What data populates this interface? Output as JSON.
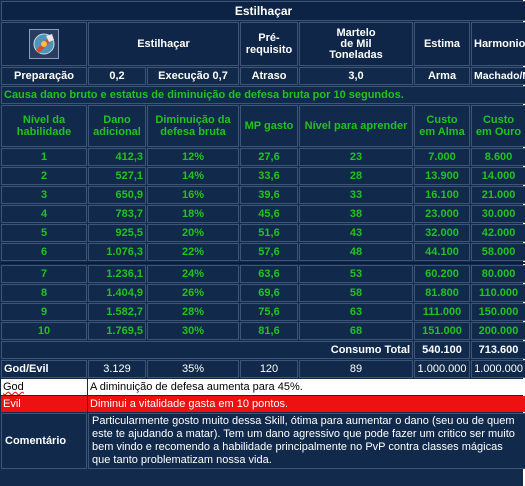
{
  "title": "Estilhaçar",
  "skill_icon": "shatter-hammer-icon",
  "header": {
    "name": "Estilhaçar",
    "prereq_label": "Pré-\nrequisito",
    "prereq_value": "Martelo\nde Mil\nToneladas",
    "stance_label": "Estima",
    "stance_value": "Harmonioso"
  },
  "info": {
    "prep_label": "Preparação",
    "prep_value": "0,2",
    "exec_label": "Execução 0,7",
    "delay_label": "Atraso",
    "delay_value": "3,0",
    "weapon_label": "Arma",
    "weapon_value": "Machado/Martelo"
  },
  "description": "Causa dano bruto e estatus de diminuição de defesa bruta por 10 segundos.",
  "columns": [
    "Nível da habilidade",
    "Dano adicional",
    "Diminuição da defesa bruta",
    "MP gasto",
    "Nível para aprender",
    "Custo em Alma",
    "Custo em Ouro"
  ],
  "rows": [
    {
      "lvl": "1",
      "dmg": "412,3",
      "def": "12%",
      "mp": "27,6",
      "learn": "23",
      "alma": "7.000",
      "ouro": "8.600"
    },
    {
      "lvl": "2",
      "dmg": "527,1",
      "def": "14%",
      "mp": "33,6",
      "learn": "28",
      "alma": "13.900",
      "ouro": "14.000"
    },
    {
      "lvl": "3",
      "dmg": "650,9",
      "def": "16%",
      "mp": "39,6",
      "learn": "33",
      "alma": "16.100",
      "ouro": "21.000"
    },
    {
      "lvl": "4",
      "dmg": "783,7",
      "def": "18%",
      "mp": "45,6",
      "learn": "38",
      "alma": "23.000",
      "ouro": "30.000"
    },
    {
      "lvl": "5",
      "dmg": "925,5",
      "def": "20%",
      "mp": "51,6",
      "learn": "43",
      "alma": "32.000",
      "ouro": "42.000"
    },
    {
      "lvl": "6",
      "dmg": "1.076,3",
      "def": "22%",
      "mp": "57,6",
      "learn": "48",
      "alma": "44.100",
      "ouro": "58.000"
    },
    {
      "lvl": "7",
      "dmg": "1.236,1",
      "def": "24%",
      "mp": "63,6",
      "learn": "53",
      "alma": "60.200",
      "ouro": "80.000"
    },
    {
      "lvl": "8",
      "dmg": "1.404,9",
      "def": "26%",
      "mp": "69,6",
      "learn": "58",
      "alma": "81.800",
      "ouro": "110.000"
    },
    {
      "lvl": "9",
      "dmg": "1.582,7",
      "def": "28%",
      "mp": "75,6",
      "learn": "63",
      "alma": "111.000",
      "ouro": "150.000"
    },
    {
      "lvl": "10",
      "dmg": "1.769,5",
      "def": "30%",
      "mp": "81,6",
      "learn": "68",
      "alma": "151.000",
      "ouro": "200.000"
    }
  ],
  "total": {
    "label": "Consumo Total",
    "alma": "540.100",
    "ouro": "713.600"
  },
  "godevil": {
    "label": "God/Evil",
    "dmg": "3.129",
    "def": "35%",
    "mp": "120",
    "learn": "89",
    "alma": "1.000.000",
    "ouro": "1.000.000"
  },
  "god": {
    "label": "God",
    "text": "A diminuição de defesa aumenta para 45%."
  },
  "evil": {
    "label": "Evil",
    "text": "Diminui a vitalidade gasta em 10 pontos."
  },
  "comment": {
    "label": "Comentário",
    "text": "Particularmente gosto muito dessa Skill, ótima para aumentar o dano (seu ou de quem este te ajudando a matar). Tem um dano agressivo que pode fazer um critico ser muito bem vindo e recomendo a habilidade principalmente no PvP contra classes mágicas que tanto problematizam nossa vida."
  }
}
